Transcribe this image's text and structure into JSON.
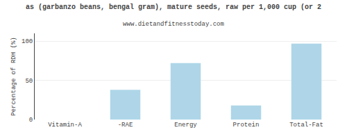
{
  "chart_data": {
    "type": "bar",
    "title": "as (garbanzo beans, bengal gram), mature seeds, raw per 1,000 cup (or 2",
    "subtitle": "www.dietandfitnesstoday.com",
    "ylabel": "Percentage of RDH (%)",
    "categories": [
      "Vitamin-A",
      "-RAE",
      "Energy",
      "Protein",
      "Total-Fat"
    ],
    "values": [
      0,
      38,
      72,
      18,
      97
    ],
    "color": "#aed6e8",
    "ylim": [
      0,
      110
    ],
    "yticks": [
      0,
      50,
      100
    ],
    "grid": true
  }
}
